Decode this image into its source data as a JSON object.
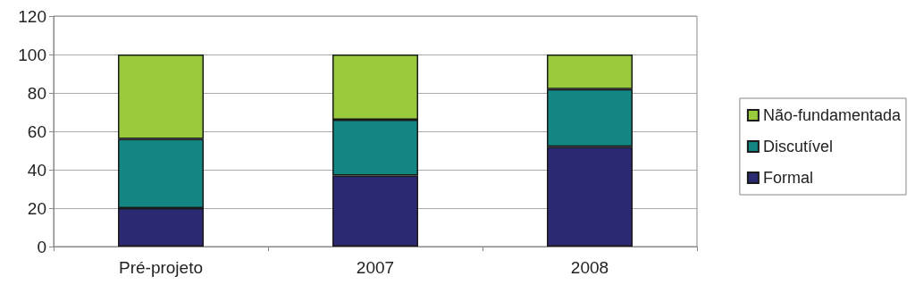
{
  "chart_data": {
    "type": "bar",
    "stacked": true,
    "categories": [
      "Pré-projeto",
      "2007",
      "2008"
    ],
    "series": [
      {
        "name": "Formal",
        "color": "#2a2a72",
        "values": [
          20,
          37,
          52
        ]
      },
      {
        "name": "Discutível",
        "color": "#138582",
        "values": [
          36,
          29,
          30
        ]
      },
      {
        "name": "Não-fundamentada",
        "color": "#9acb3c",
        "values": [
          44,
          34,
          18
        ]
      }
    ],
    "ylim": [
      0,
      120
    ],
    "yticks": [
      0,
      20,
      40,
      60,
      80,
      100,
      120
    ],
    "grid": "y",
    "legend": "right"
  }
}
